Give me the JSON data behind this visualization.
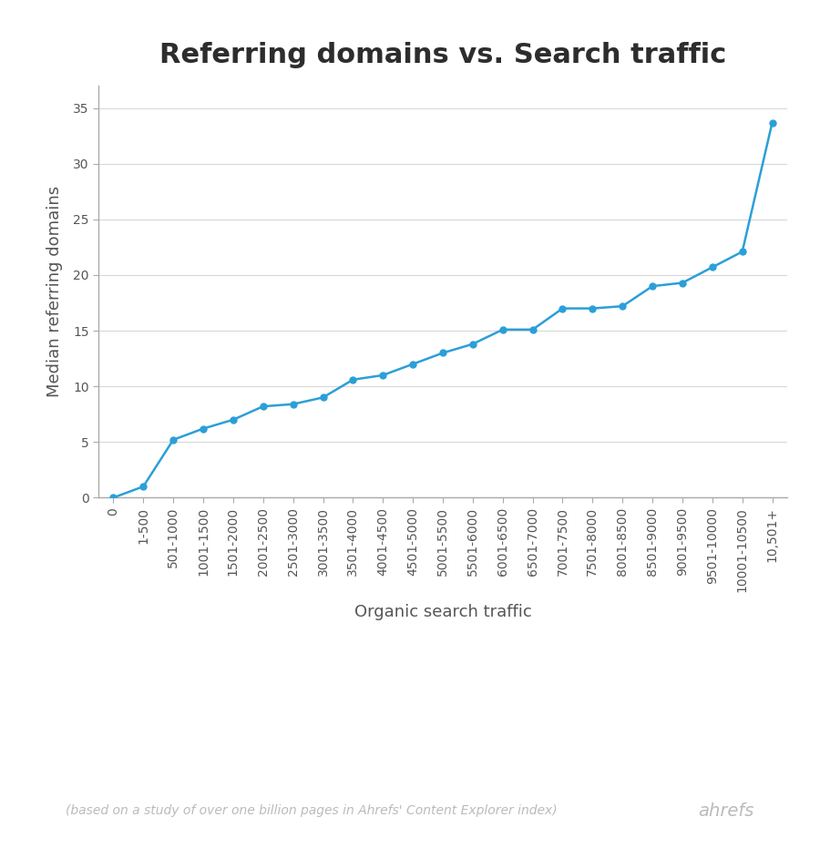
{
  "title": "Referring domains vs. Search traffic",
  "xlabel": "Organic search traffic",
  "ylabel": "Median referring domains",
  "footnote": "(based on a study of over one billion pages in Ahrefs' Content Explorer index)",
  "brand": "ahrefs",
  "categories": [
    "0",
    "1-500",
    "501-1000",
    "1001-1500",
    "1501-2000",
    "2001-2500",
    "2501-3000",
    "3001-3500",
    "3501-4000",
    "4001-4500",
    "4501-5000",
    "5001-5500",
    "5501-6000",
    "6001-6500",
    "6501-7000",
    "7001-7500",
    "7501-8000",
    "8001-8500",
    "8501-9000",
    "9001-9500",
    "9501-10000",
    "10001-10500",
    "10,501+"
  ],
  "values": [
    0.0,
    1.0,
    5.2,
    6.2,
    7.0,
    8.2,
    8.4,
    9.0,
    10.6,
    11.0,
    12.0,
    13.0,
    13.8,
    15.1,
    15.1,
    17.0,
    17.0,
    17.2,
    19.0,
    19.3,
    20.7,
    22.1,
    33.7
  ],
  "line_color": "#2b9fd8",
  "marker_color": "#2b9fd8",
  "background_color": "#ffffff",
  "grid_color": "#d8d8d8",
  "title_color": "#2d2d2d",
  "label_color": "#555555",
  "tick_color": "#555555",
  "spine_color": "#aaaaaa",
  "footnote_color": "#bbbbbb",
  "brand_color": "#bbbbbb",
  "ylim": [
    0,
    37
  ],
  "yticks": [
    0,
    5,
    10,
    15,
    20,
    25,
    30,
    35
  ],
  "title_fontsize": 22,
  "axis_label_fontsize": 13,
  "tick_fontsize": 10,
  "footnote_fontsize": 10,
  "brand_fontsize": 14,
  "figwidth": 9.0,
  "figheight": 9.42,
  "dpi": 100
}
